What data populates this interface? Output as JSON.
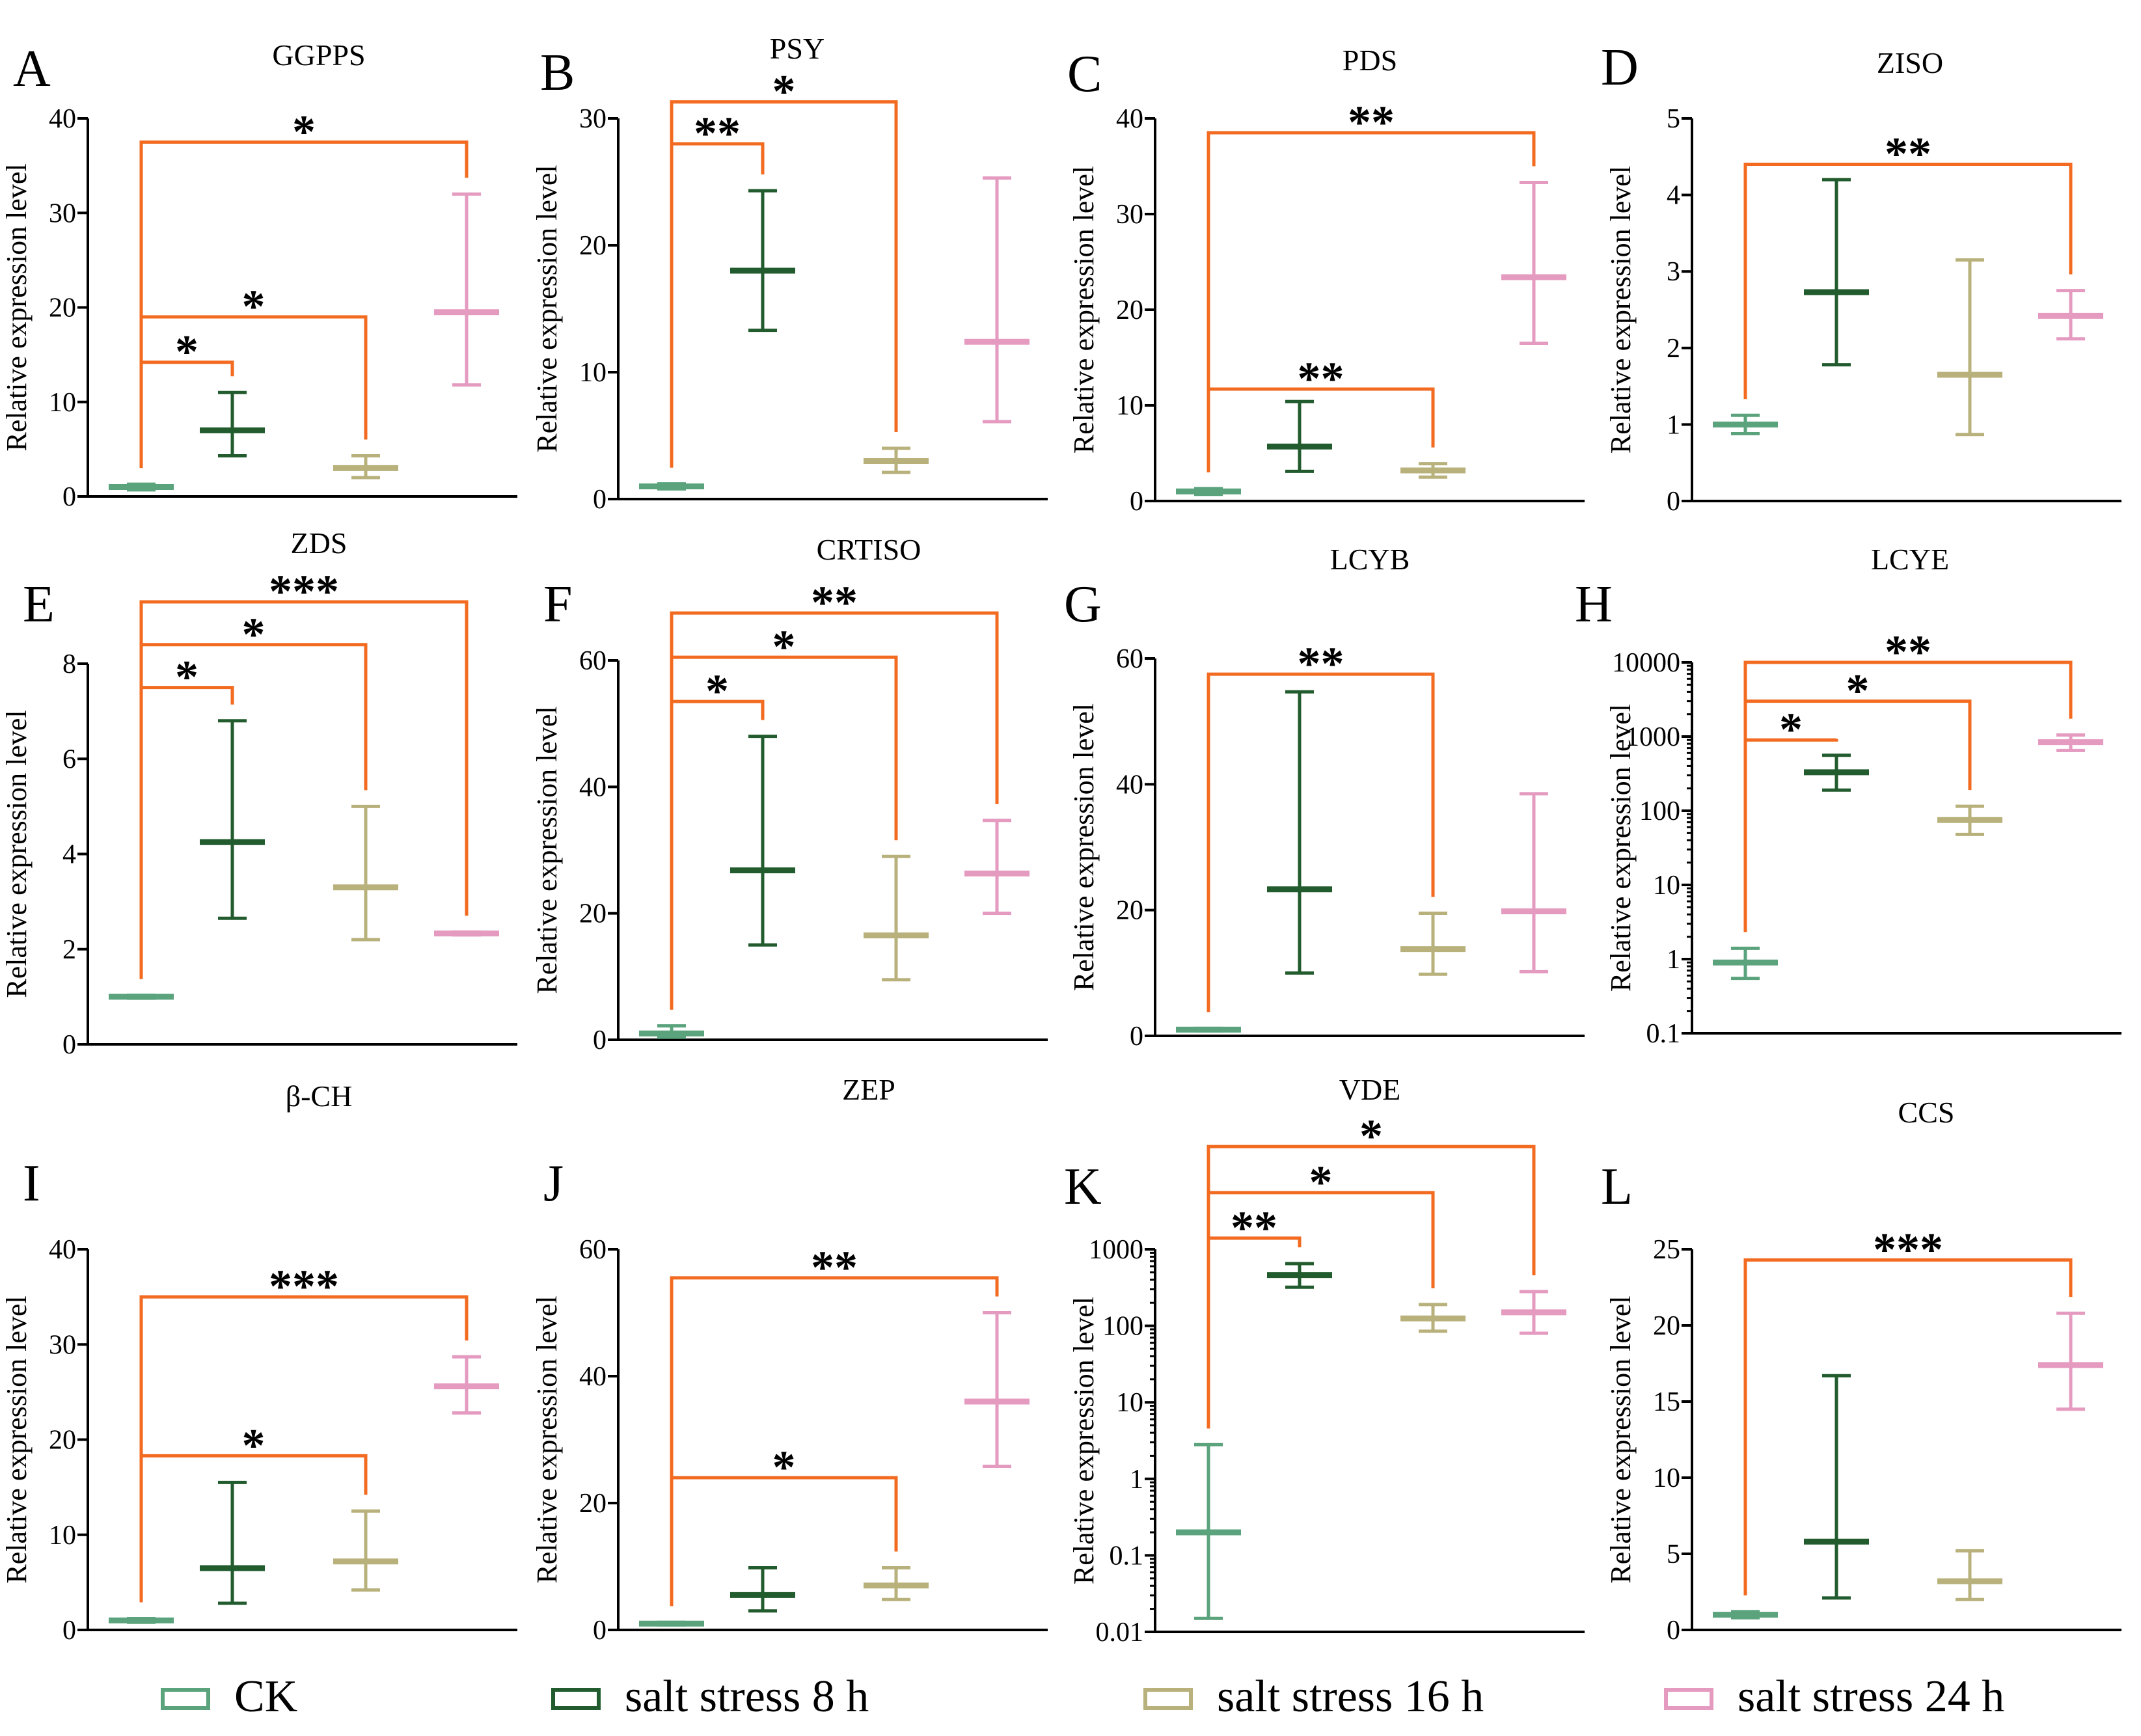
{
  "colors": {
    "axis": "#000000",
    "bracket": "#F26B21",
    "series": [
      "#5AA37C",
      "#225C2E",
      "#B8B17C",
      "#E59AC0"
    ]
  },
  "legend": {
    "items": [
      {
        "label": "CK",
        "color": "#5AA37C"
      },
      {
        "label": "salt stress 8 h",
        "color": "#225C2E"
      },
      {
        "label": "salt stress 16 h",
        "color": "#B8B17C"
      },
      {
        "label": "salt stress 24 h",
        "color": "#E59AC0"
      }
    ]
  },
  "chart_data": [
    {
      "letter": "A",
      "title": "GGPPS",
      "type": "scatter",
      "ylabel": "Relative expression level",
      "scale": "linear",
      "ylim": [
        0,
        40
      ],
      "yticks": [
        "0",
        "10",
        "20",
        "30",
        "40"
      ],
      "series": [
        {
          "name": "CK",
          "mean": 1,
          "low": 0.7,
          "high": 1.3
        },
        {
          "name": "salt stress 8 h",
          "mean": 7,
          "low": 4.3,
          "high": 11
        },
        {
          "name": "salt stress 16 h",
          "mean": 3,
          "low": 2,
          "high": 4.3
        },
        {
          "name": "salt stress 24 h",
          "mean": 19.5,
          "low": 11.8,
          "high": 32
        }
      ],
      "brackets": [
        {
          "to": 1,
          "label": "*",
          "y": 14.2
        },
        {
          "to": 2,
          "label": "*",
          "y": 19
        },
        {
          "to": 3,
          "label": "*",
          "y": 37.5
        }
      ]
    },
    {
      "letter": "B",
      "title": "PSY",
      "type": "scatter",
      "ylabel": "Relative expression level",
      "scale": "linear",
      "ylim": [
        0,
        30
      ],
      "yticks": [
        "0",
        "10",
        "20",
        "30"
      ],
      "series": [
        {
          "name": "CK",
          "mean": 1,
          "low": 0.8,
          "high": 1.2
        },
        {
          "name": "salt stress 8 h",
          "mean": 18,
          "low": 13.3,
          "high": 24.3
        },
        {
          "name": "salt stress 16 h",
          "mean": 3,
          "low": 2.1,
          "high": 4
        },
        {
          "name": "salt stress 24 h",
          "mean": 12.4,
          "low": 6.1,
          "high": 25.3
        }
      ],
      "brackets": [
        {
          "to": 1,
          "label": "**",
          "y": 28
        },
        {
          "to": 2,
          "label": "*",
          "y": 31.3
        }
      ]
    },
    {
      "letter": "C",
      "title": "PDS",
      "type": "scatter",
      "ylabel": "Relative expression level",
      "scale": "linear",
      "ylim": [
        0,
        40
      ],
      "yticks": [
        "0",
        "10",
        "20",
        "30",
        "40"
      ],
      "series": [
        {
          "name": "CK",
          "mean": 1,
          "low": 0.7,
          "high": 1.3
        },
        {
          "name": "salt stress 8 h",
          "mean": 5.7,
          "low": 3.1,
          "high": 10.4
        },
        {
          "name": "salt stress 16 h",
          "mean": 3.2,
          "low": 2.5,
          "high": 3.9
        },
        {
          "name": "salt stress 24 h",
          "mean": 23.4,
          "low": 16.5,
          "high": 33.3
        }
      ],
      "brackets": [
        {
          "to": 2,
          "label": "**",
          "y": 11.7
        },
        {
          "to": 3,
          "label": "**",
          "y": 38.5
        }
      ]
    },
    {
      "letter": "D",
      "title": "ZISO",
      "type": "scatter",
      "ylabel": "Relative expression level",
      "scale": "linear",
      "ylim": [
        0,
        5
      ],
      "yticks": [
        "0",
        "1",
        "2",
        "3",
        "4",
        "5"
      ],
      "series": [
        {
          "name": "CK",
          "mean": 1,
          "low": 0.88,
          "high": 1.12
        },
        {
          "name": "salt stress 8 h",
          "mean": 2.73,
          "low": 1.78,
          "high": 4.2
        },
        {
          "name": "salt stress 16 h",
          "mean": 1.65,
          "low": 0.87,
          "high": 3.15
        },
        {
          "name": "salt stress 24 h",
          "mean": 2.42,
          "low": 2.12,
          "high": 2.75
        }
      ],
      "brackets": [
        {
          "to": 3,
          "label": "**",
          "y": 4.4
        }
      ]
    },
    {
      "letter": "E",
      "title": "ZDS",
      "type": "scatter",
      "ylabel": "Relative expression level",
      "scale": "linear",
      "ylim": [
        0,
        8
      ],
      "yticks": [
        "0",
        "2",
        "4",
        "6",
        "8"
      ],
      "series": [
        {
          "name": "CK",
          "mean": 1,
          "low": 0.97,
          "high": 1.03
        },
        {
          "name": "salt stress 8 h",
          "mean": 4.25,
          "low": 2.65,
          "high": 6.8
        },
        {
          "name": "salt stress 16 h",
          "mean": 3.3,
          "low": 2.2,
          "high": 5
        },
        {
          "name": "salt stress 24 h",
          "mean": 2.33,
          "low": 2.3,
          "high": 2.36
        }
      ],
      "brackets": [
        {
          "to": 1,
          "label": "*",
          "y": 7.5
        },
        {
          "to": 2,
          "label": "*",
          "y": 8.4
        },
        {
          "to": 3,
          "label": "***",
          "y": 9.3
        }
      ]
    },
    {
      "letter": "F",
      "title": "CRTISO",
      "type": "scatter",
      "ylabel": "Relative expression level",
      "scale": "linear",
      "ylim": [
        0,
        60
      ],
      "yticks": [
        "0",
        "20",
        "40",
        "60"
      ],
      "series": [
        {
          "name": "CK",
          "mean": 1,
          "low": 0.4,
          "high": 2.2
        },
        {
          "name": "salt stress 8 h",
          "mean": 26.8,
          "low": 15,
          "high": 48
        },
        {
          "name": "salt stress 16 h",
          "mean": 16.5,
          "low": 9.5,
          "high": 29
        },
        {
          "name": "salt stress 24 h",
          "mean": 26.3,
          "low": 20,
          "high": 34.7
        }
      ],
      "brackets": [
        {
          "to": 1,
          "label": "*",
          "y": 53.5
        },
        {
          "to": 2,
          "label": "*",
          "y": 60.5
        },
        {
          "to": 3,
          "label": "**",
          "y": 67.5
        }
      ]
    },
    {
      "letter": "G",
      "title": "LCYB",
      "type": "scatter",
      "ylabel": "Relative expression level",
      "scale": "linear",
      "ylim": [
        0,
        60
      ],
      "yticks": [
        "0",
        "20",
        "40",
        "60"
      ],
      "series": [
        {
          "name": "CK",
          "mean": 1,
          "low": 0.8,
          "high": 1.2
        },
        {
          "name": "salt stress 8 h",
          "mean": 23.3,
          "low": 10,
          "high": 54.7
        },
        {
          "name": "salt stress 16 h",
          "mean": 13.8,
          "low": 9.8,
          "high": 19.5
        },
        {
          "name": "salt stress 24 h",
          "mean": 19.8,
          "low": 10.2,
          "high": 38.5
        }
      ],
      "brackets": [
        {
          "to": 2,
          "label": "**",
          "y": 57.5
        }
      ]
    },
    {
      "letter": "H",
      "title": "LCYE",
      "type": "scatter",
      "ylabel": "Relative expression level",
      "scale": "log",
      "ylim": [
        0.1,
        10000
      ],
      "yticks": [
        "0.1",
        "1",
        "10",
        "100",
        "1000",
        "10000"
      ],
      "series": [
        {
          "name": "CK",
          "mean": 0.9,
          "low": 0.55,
          "high": 1.4
        },
        {
          "name": "salt stress 8 h",
          "mean": 330,
          "low": 190,
          "high": 560
        },
        {
          "name": "salt stress 16 h",
          "mean": 75,
          "low": 48,
          "high": 115
        },
        {
          "name": "salt stress 24 h",
          "mean": 840,
          "low": 650,
          "high": 1050
        }
      ],
      "brackets": [
        {
          "to": 1,
          "label": "*",
          "y": 900
        },
        {
          "to": 2,
          "label": "*",
          "y": 3000
        },
        {
          "to": 3,
          "label": "**",
          "y": 10000
        }
      ]
    },
    {
      "letter": "I",
      "title": "β-CH",
      "type": "scatter",
      "ylabel": "Relative expression level",
      "scale": "linear",
      "ylim": [
        0,
        40
      ],
      "yticks": [
        "0",
        "10",
        "20",
        "30",
        "40"
      ],
      "series": [
        {
          "name": "CK",
          "mean": 1,
          "low": 0.8,
          "high": 1.2
        },
        {
          "name": "salt stress 8 h",
          "mean": 6.5,
          "low": 2.8,
          "high": 15.5
        },
        {
          "name": "salt stress 16 h",
          "mean": 7.2,
          "low": 4.2,
          "high": 12.5
        },
        {
          "name": "salt stress 24 h",
          "mean": 25.6,
          "low": 22.8,
          "high": 28.7
        }
      ],
      "brackets": [
        {
          "to": 2,
          "label": "*",
          "y": 18.3
        },
        {
          "to": 3,
          "label": "***",
          "y": 35
        }
      ]
    },
    {
      "letter": "J",
      "title": "ZEP",
      "type": "scatter",
      "ylabel": "Relative expression level",
      "scale": "linear",
      "ylim": [
        0,
        60
      ],
      "yticks": [
        "0",
        "20",
        "40",
        "60"
      ],
      "series": [
        {
          "name": "CK",
          "mean": 1,
          "low": 0.8,
          "high": 1.2
        },
        {
          "name": "salt stress 8 h",
          "mean": 5.5,
          "low": 3,
          "high": 9.8
        },
        {
          "name": "salt stress 16 h",
          "mean": 7,
          "low": 4.8,
          "high": 9.8
        },
        {
          "name": "salt stress 24 h",
          "mean": 36,
          "low": 25.8,
          "high": 50
        }
      ],
      "brackets": [
        {
          "to": 2,
          "label": "*",
          "y": 24
        },
        {
          "to": 3,
          "label": "**",
          "y": 55.5
        }
      ]
    },
    {
      "letter": "K",
      "title": "VDE",
      "type": "scatter",
      "ylabel": "Relative expression level",
      "scale": "log",
      "ylim": [
        0.01,
        1000
      ],
      "yticks": [
        "0.01",
        "0.1",
        "1",
        "10",
        "100",
        "1000"
      ],
      "series": [
        {
          "name": "CK",
          "mean": 0.2,
          "low": 0.015,
          "high": 2.8
        },
        {
          "name": "salt stress 8 h",
          "mean": 460,
          "low": 320,
          "high": 650
        },
        {
          "name": "salt stress 16 h",
          "mean": 125,
          "low": 85,
          "high": 190
        },
        {
          "name": "salt stress 24 h",
          "mean": 150,
          "low": 80,
          "high": 280
        }
      ],
      "brackets": [
        {
          "to": 1,
          "label": "**",
          "y": 1400
        },
        {
          "to": 2,
          "label": "*",
          "y": 5500
        },
        {
          "to": 3,
          "label": "*",
          "y": 22000
        }
      ]
    },
    {
      "letter": "L",
      "title": "CCS",
      "type": "scatter",
      "ylabel": "Relative expression level",
      "scale": "linear",
      "ylim": [
        0,
        25
      ],
      "yticks": [
        "0",
        "5",
        "10",
        "15",
        "20",
        "25"
      ],
      "series": [
        {
          "name": "CK",
          "mean": 1,
          "low": 0.8,
          "high": 1.2
        },
        {
          "name": "salt stress 8 h",
          "mean": 5.8,
          "low": 2.1,
          "high": 16.7
        },
        {
          "name": "salt stress 16 h",
          "mean": 3.2,
          "low": 2,
          "high": 5.2
        },
        {
          "name": "salt stress 24 h",
          "mean": 17.4,
          "low": 14.5,
          "high": 20.8
        }
      ],
      "brackets": [
        {
          "to": 3,
          "label": "***",
          "y": 24.3
        }
      ]
    }
  ]
}
